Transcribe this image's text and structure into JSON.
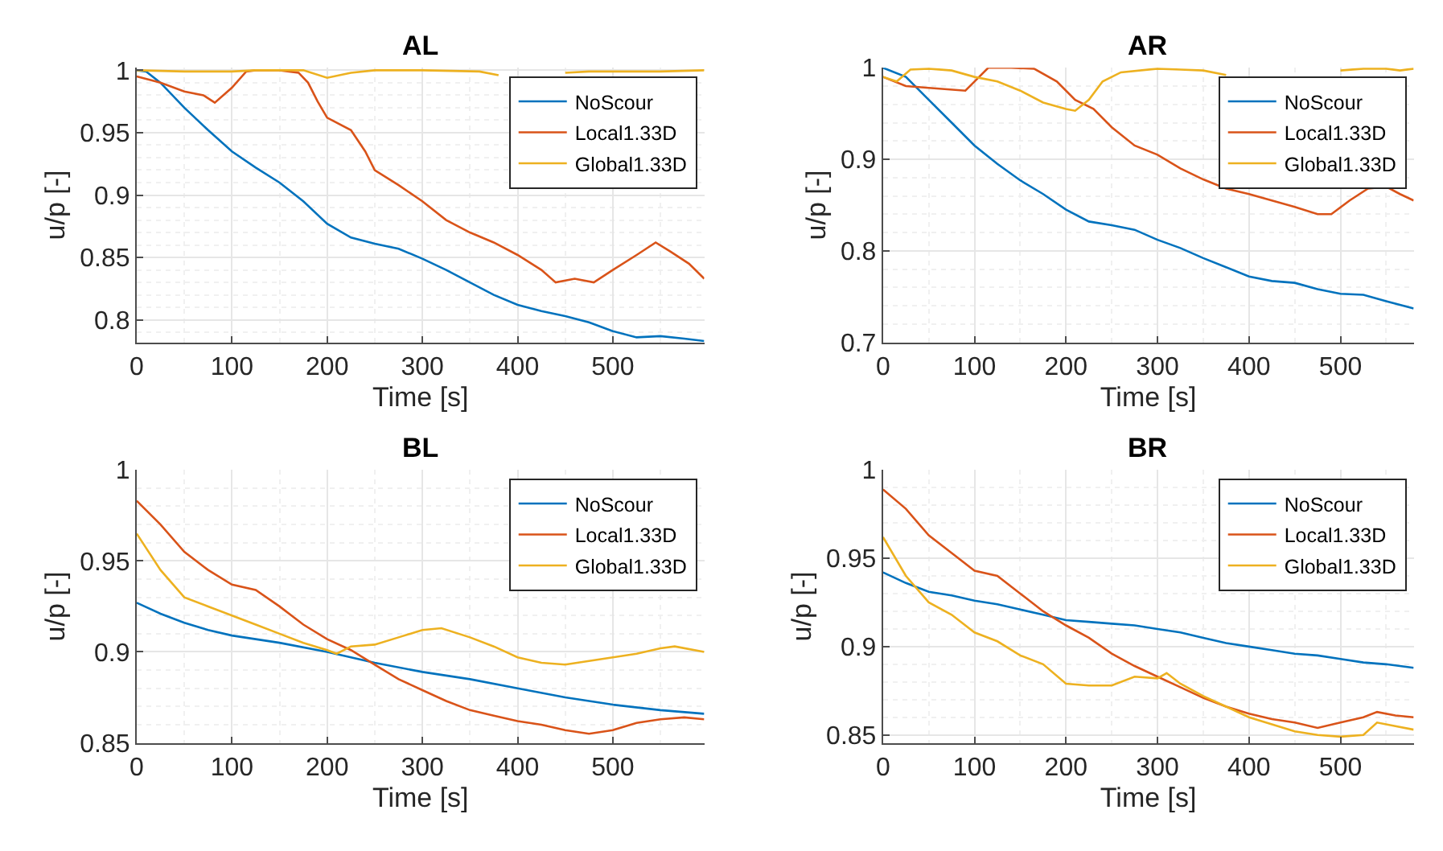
{
  "chart_data": [
    {
      "type": "line",
      "title": "AL",
      "xlabel": "Time [s]",
      "ylabel": "u/p [-]",
      "xlim": [
        0,
        596
      ],
      "ylim": [
        0.782,
        1.002
      ],
      "xticks": [
        0,
        100,
        200,
        300,
        400,
        500
      ],
      "yticks": [
        0.8,
        0.85,
        0.9,
        0.95,
        1
      ],
      "grid": true,
      "legend": "top right",
      "series": [
        {
          "name": "NoScour",
          "color": "#0072bd",
          "x": [
            0,
            10,
            25,
            50,
            75,
            100,
            125,
            150,
            175,
            200,
            225,
            250,
            275,
            300,
            325,
            350,
            375,
            400,
            425,
            450,
            475,
            500,
            525,
            550,
            575,
            596
          ],
          "values": [
            1.0,
            0.999,
            0.99,
            0.97,
            0.952,
            0.935,
            0.922,
            0.91,
            0.895,
            0.877,
            0.866,
            0.861,
            0.857,
            0.849,
            0.84,
            0.83,
            0.82,
            0.812,
            0.807,
            0.803,
            0.798,
            0.791,
            0.786,
            0.787,
            0.785,
            0.783
          ]
        },
        {
          "name": "Local1.33D",
          "color": "#d95319",
          "x": [
            0,
            25,
            50,
            70,
            82,
            100,
            115,
            125,
            150,
            170,
            180,
            190,
            200,
            225,
            240,
            250,
            275,
            300,
            325,
            350,
            375,
            400,
            425,
            440,
            460,
            480,
            500,
            525,
            545,
            560,
            580,
            596
          ],
          "values": [
            0.995,
            0.99,
            0.983,
            0.98,
            0.974,
            0.986,
            0.999,
            1.0,
            1.0,
            0.998,
            0.99,
            0.975,
            0.962,
            0.952,
            0.935,
            0.92,
            0.908,
            0.895,
            0.88,
            0.87,
            0.862,
            0.852,
            0.84,
            0.83,
            0.833,
            0.83,
            0.84,
            0.852,
            0.862,
            0.855,
            0.845,
            0.833
          ]
        },
        {
          "name": "Global1.33D",
          "color": "#edb120",
          "x": [
            0,
            50,
            100,
            125,
            175,
            200,
            225,
            250,
            300,
            360,
            380,
            400,
            425,
            450,
            475,
            500,
            550,
            596
          ],
          "values": [
            1.0,
            0.999,
            0.999,
            1.0,
            1.0,
            0.994,
            0.998,
            1.0,
            1.0,
            0.999,
            0.996,
            null,
            null,
            0.998,
            0.999,
            0.999,
            0.999,
            1.0
          ]
        }
      ]
    },
    {
      "type": "line",
      "title": "AR",
      "xlabel": "Time [s]",
      "ylabel": "u/p [-]",
      "xlim": [
        0,
        580
      ],
      "ylim": [
        0.7,
        1.0
      ],
      "xticks": [
        0,
        100,
        200,
        300,
        400,
        500
      ],
      "yticks": [
        0.7,
        0.8,
        0.9,
        1
      ],
      "grid": true,
      "legend": "top right",
      "series": [
        {
          "name": "NoScour",
          "color": "#0072bd",
          "x": [
            0,
            25,
            50,
            75,
            100,
            125,
            150,
            175,
            200,
            225,
            250,
            275,
            300,
            325,
            350,
            375,
            400,
            425,
            450,
            475,
            500,
            525,
            550,
            580
          ],
          "values": [
            1.0,
            0.99,
            0.965,
            0.94,
            0.915,
            0.895,
            0.877,
            0.862,
            0.845,
            0.832,
            0.828,
            0.823,
            0.812,
            0.803,
            0.792,
            0.782,
            0.772,
            0.767,
            0.765,
            0.758,
            0.753,
            0.752,
            0.745,
            0.737
          ]
        },
        {
          "name": "Local1.33D",
          "color": "#d95319",
          "x": [
            0,
            25,
            50,
            90,
            100,
            115,
            140,
            165,
            190,
            210,
            230,
            250,
            275,
            300,
            325,
            350,
            375,
            400,
            425,
            450,
            475,
            490,
            510,
            530,
            550,
            565,
            580
          ],
          "values": [
            0.99,
            0.98,
            0.978,
            0.975,
            0.985,
            1.0,
            1.0,
            0.999,
            0.985,
            0.965,
            0.955,
            0.935,
            0.915,
            0.905,
            0.89,
            0.878,
            0.868,
            0.862,
            0.855,
            0.848,
            0.84,
            0.84,
            0.855,
            0.868,
            0.87,
            0.862,
            0.855
          ]
        },
        {
          "name": "Global1.33D",
          "color": "#edb120",
          "x": [
            0,
            15,
            30,
            50,
            75,
            100,
            125,
            150,
            175,
            200,
            210,
            225,
            240,
            260,
            300,
            325,
            350,
            375,
            400,
            425,
            450,
            475,
            500,
            525,
            550,
            565,
            580
          ],
          "values": [
            0.99,
            0.985,
            0.998,
            0.999,
            0.997,
            0.99,
            0.985,
            0.975,
            0.962,
            0.955,
            0.953,
            0.965,
            0.985,
            0.995,
            0.999,
            0.998,
            0.997,
            0.992,
            null,
            null,
            null,
            null,
            0.997,
            0.999,
            0.999,
            0.997,
            0.999
          ]
        }
      ]
    },
    {
      "type": "line",
      "title": "BL",
      "xlabel": "Time [s]",
      "ylabel": "u/p [-]",
      "xlim": [
        0,
        596
      ],
      "ylim": [
        0.85,
        1.0
      ],
      "xticks": [
        0,
        100,
        200,
        300,
        400,
        500
      ],
      "yticks": [
        0.85,
        0.9,
        0.95,
        1
      ],
      "grid": true,
      "legend": "top right",
      "series": [
        {
          "name": "NoScour",
          "color": "#0072bd",
          "x": [
            0,
            25,
            50,
            75,
            100,
            150,
            200,
            250,
            300,
            350,
            400,
            450,
            500,
            550,
            596
          ],
          "values": [
            0.927,
            0.921,
            0.916,
            0.912,
            0.909,
            0.905,
            0.9,
            0.894,
            0.889,
            0.885,
            0.88,
            0.875,
            0.871,
            0.868,
            0.866
          ]
        },
        {
          "name": "Local1.33D",
          "color": "#d95319",
          "x": [
            0,
            25,
            50,
            75,
            100,
            125,
            150,
            175,
            200,
            225,
            250,
            275,
            300,
            325,
            350,
            375,
            400,
            425,
            450,
            475,
            500,
            525,
            550,
            575,
            596
          ],
          "values": [
            0.983,
            0.97,
            0.955,
            0.945,
            0.937,
            0.934,
            0.925,
            0.915,
            0.907,
            0.901,
            0.893,
            0.885,
            0.879,
            0.873,
            0.868,
            0.865,
            0.862,
            0.86,
            0.857,
            0.855,
            0.857,
            0.861,
            0.863,
            0.864,
            0.863
          ]
        },
        {
          "name": "Global1.33D",
          "color": "#edb120",
          "x": [
            0,
            25,
            50,
            75,
            100,
            125,
            150,
            175,
            200,
            210,
            225,
            250,
            275,
            300,
            320,
            350,
            375,
            400,
            425,
            450,
            475,
            500,
            525,
            550,
            565,
            596
          ],
          "values": [
            0.965,
            0.945,
            0.93,
            0.925,
            0.92,
            0.915,
            0.91,
            0.905,
            0.901,
            0.899,
            0.903,
            0.904,
            0.908,
            0.912,
            0.913,
            0.908,
            0.903,
            0.897,
            0.894,
            0.893,
            0.895,
            0.897,
            0.899,
            0.902,
            0.903,
            0.9
          ]
        }
      ]
    },
    {
      "type": "line",
      "title": "BR",
      "xlabel": "Time [s]",
      "ylabel": "u/p [-]",
      "xlim": [
        0,
        580
      ],
      "ylim": [
        0.8455,
        1.0
      ],
      "xticks": [
        0,
        100,
        200,
        300,
        400,
        500
      ],
      "yticks": [
        0.85,
        0.9,
        0.95,
        1
      ],
      "grid": true,
      "legend": "top right",
      "series": [
        {
          "name": "NoScour",
          "color": "#0072bd",
          "x": [
            0,
            25,
            50,
            75,
            100,
            125,
            150,
            175,
            200,
            225,
            250,
            275,
            300,
            325,
            350,
            375,
            400,
            425,
            450,
            475,
            500,
            525,
            550,
            580
          ],
          "values": [
            0.942,
            0.936,
            0.931,
            0.929,
            0.926,
            0.924,
            0.921,
            0.918,
            0.915,
            0.914,
            0.913,
            0.912,
            0.91,
            0.908,
            0.905,
            0.902,
            0.9,
            0.898,
            0.896,
            0.895,
            0.893,
            0.891,
            0.89,
            0.888
          ]
        },
        {
          "name": "Local1.33D",
          "color": "#d95319",
          "x": [
            0,
            25,
            50,
            75,
            100,
            125,
            150,
            175,
            200,
            225,
            250,
            275,
            300,
            325,
            350,
            375,
            400,
            425,
            450,
            475,
            500,
            525,
            540,
            560,
            580
          ],
          "values": [
            0.989,
            0.978,
            0.963,
            0.953,
            0.943,
            0.94,
            0.93,
            0.92,
            0.912,
            0.905,
            0.896,
            0.889,
            0.883,
            0.877,
            0.871,
            0.866,
            0.862,
            0.859,
            0.857,
            0.854,
            0.857,
            0.86,
            0.863,
            0.861,
            0.86
          ]
        },
        {
          "name": "Global1.33D",
          "color": "#edb120",
          "x": [
            0,
            25,
            50,
            75,
            100,
            125,
            150,
            175,
            200,
            225,
            250,
            275,
            300,
            310,
            325,
            350,
            375,
            400,
            425,
            450,
            475,
            500,
            525,
            540,
            560,
            580
          ],
          "values": [
            0.962,
            0.94,
            0.925,
            0.918,
            0.908,
            0.903,
            0.895,
            0.89,
            0.879,
            0.878,
            0.878,
            0.883,
            0.882,
            0.885,
            0.879,
            0.872,
            0.866,
            0.86,
            0.856,
            0.852,
            0.85,
            0.849,
            0.85,
            0.857,
            0.855,
            0.853
          ]
        }
      ]
    }
  ]
}
